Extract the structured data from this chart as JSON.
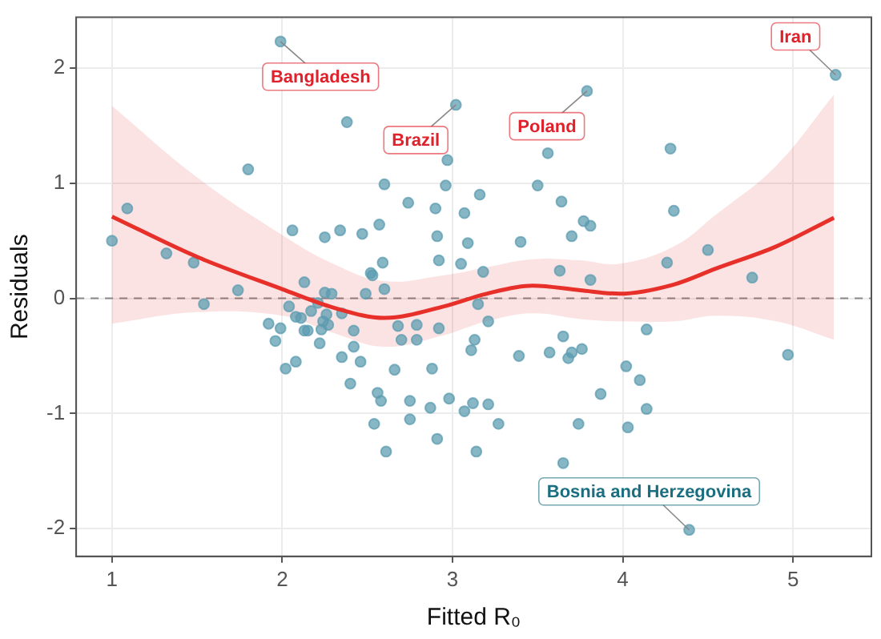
{
  "chart_data": {
    "type": "scatter",
    "xlabel": "Fitted R₀",
    "ylabel": "Residuals",
    "xlim": [
      0.79,
      5.46
    ],
    "ylim": [
      -2.24,
      2.44
    ],
    "xticks": [
      1,
      2,
      3,
      4,
      5
    ],
    "yticks": [
      -2,
      -1,
      0,
      1,
      2
    ],
    "grid": true,
    "legend": false,
    "marker": "circle",
    "series": [
      {
        "color": "#5b9bb0",
        "x": [
          1.0,
          1.09,
          1.32,
          1.48,
          1.54,
          1.74,
          1.8,
          1.99,
          2.06,
          2.13,
          2.25,
          2.34,
          2.38,
          2.47,
          2.57,
          2.6,
          2.59,
          2.52,
          2.53,
          2.6,
          2.49,
          2.25,
          2.29,
          2.74,
          2.9,
          2.91,
          2.92,
          2.96,
          2.97,
          3.02,
          3.05,
          3.07,
          3.09,
          3.16,
          3.18,
          3.79,
          3.56,
          3.5,
          3.64,
          3.77,
          3.81,
          3.7,
          3.4,
          3.63,
          3.81,
          4.28,
          4.3,
          4.26,
          4.5,
          4.76,
          5.25,
          3.15,
          3.21,
          3.13,
          3.11,
          3.39,
          3.57,
          3.65,
          3.7,
          3.68,
          3.76,
          4.14,
          4.02,
          4.1,
          3.87,
          4.14,
          4.03,
          3.74,
          2.98,
          3.07,
          3.12,
          3.21,
          3.27,
          3.14,
          3.65,
          4.39,
          4.97,
          2.04,
          1.92,
          1.99,
          1.96,
          2.02,
          2.08,
          2.08,
          2.11,
          2.17,
          2.21,
          2.13,
          2.15,
          2.26,
          2.24,
          2.27,
          2.23,
          2.22,
          2.35,
          2.42,
          2.42,
          2.35,
          2.46,
          2.4,
          2.56,
          2.58,
          2.54,
          2.61,
          2.66,
          2.68,
          2.7,
          2.79,
          2.79,
          2.92,
          2.75,
          2.75,
          2.87,
          2.88,
          2.91
        ],
        "values": [
          0.5,
          0.78,
          0.39,
          0.31,
          -0.05,
          0.07,
          1.12,
          2.23,
          0.59,
          0.14,
          0.53,
          0.59,
          1.53,
          0.56,
          0.64,
          0.99,
          0.31,
          0.22,
          0.2,
          0.08,
          0.04,
          0.05,
          0.04,
          0.83,
          0.78,
          0.54,
          0.33,
          0.98,
          1.2,
          1.68,
          0.3,
          0.74,
          0.48,
          0.9,
          0.23,
          1.8,
          1.26,
          0.98,
          0.84,
          0.67,
          0.63,
          0.54,
          0.49,
          0.24,
          0.16,
          1.3,
          0.76,
          0.31,
          0.42,
          0.18,
          1.94,
          -0.05,
          -0.2,
          -0.36,
          -0.45,
          -0.5,
          -0.47,
          -0.33,
          -0.47,
          -0.52,
          -0.44,
          -0.27,
          -0.59,
          -0.71,
          -0.83,
          -0.96,
          -1.12,
          -1.09,
          -0.87,
          -0.98,
          -0.91,
          -0.92,
          -1.09,
          -1.33,
          -1.43,
          -2.01,
          -0.49,
          -0.07,
          -0.22,
          -0.26,
          -0.37,
          -0.61,
          -0.55,
          -0.16,
          -0.17,
          -0.11,
          -0.04,
          -0.28,
          -0.28,
          -0.14,
          -0.2,
          -0.23,
          -0.27,
          -0.39,
          -0.13,
          -0.28,
          -0.42,
          -0.51,
          -0.55,
          -0.74,
          -0.82,
          -0.89,
          -1.09,
          -1.33,
          -0.62,
          -0.24,
          -0.36,
          -0.23,
          -0.36,
          -0.26,
          -0.89,
          -1.05,
          -0.95,
          -0.61,
          -1.22
        ]
      },
      {
        "type": "line",
        "marker": "none",
        "color": "#e8302a",
        "x": [
          1,
          1.5,
          2,
          2.3,
          2.6,
          2.95,
          3.2,
          3.47,
          3.75,
          3.98,
          4.3,
          4.55,
          4.9,
          5.24
        ],
        "values": [
          0.71,
          0.36,
          0.08,
          -0.08,
          -0.17,
          -0.07,
          0.04,
          0.11,
          0.07,
          0.04,
          0.12,
          0.26,
          0.45,
          0.7
        ],
        "lower": [
          -0.22,
          -0.12,
          -0.15,
          -0.3,
          -0.42,
          -0.32,
          -0.2,
          -0.13,
          -0.18,
          -0.2,
          -0.2,
          -0.15,
          -0.2,
          -0.36
        ],
        "upper": [
          1.67,
          1.05,
          0.55,
          0.3,
          0.15,
          0.2,
          0.27,
          0.34,
          0.33,
          0.3,
          0.45,
          0.73,
          1.15,
          1.77
        ]
      }
    ],
    "ref_lines": [
      {
        "axis": "y",
        "value": 0,
        "color": "#888888",
        "line_style": "dashed"
      }
    ],
    "annotations": [
      {
        "text": "Bangladesh",
        "x": 1.99,
        "y": 2.23
      },
      {
        "text": "Brazil",
        "x": 3.02,
        "y": 1.68
      },
      {
        "text": "Poland",
        "x": 3.79,
        "y": 1.8
      },
      {
        "text": "Iran",
        "x": 5.25,
        "y": 1.94
      },
      {
        "text": "Bosnia and Herzegovina",
        "x": 4.39,
        "y": -2.01
      }
    ]
  }
}
